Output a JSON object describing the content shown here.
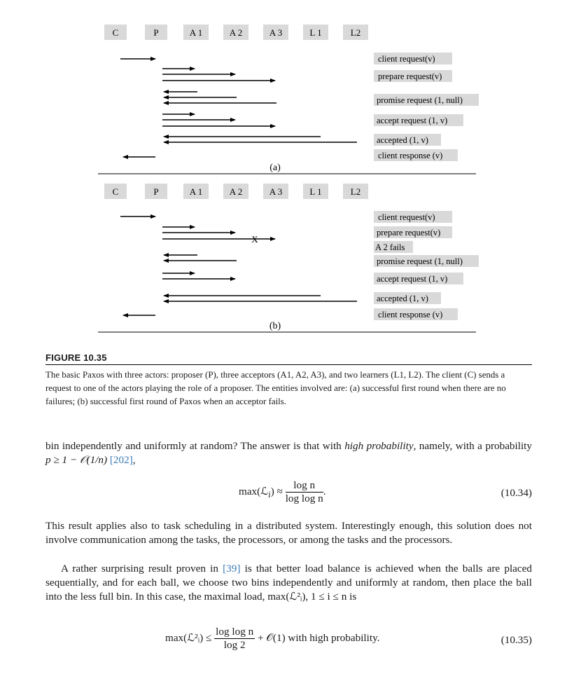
{
  "figure": {
    "actors": [
      "C",
      "P",
      "A 1",
      "A 2",
      "A 3",
      "L 1",
      "L2"
    ],
    "panel_a": {
      "label": "(a)",
      "messages": [
        "client request(v)",
        "prepare request(v)",
        "promise request (1, null)",
        "accept request (1, v)",
        "accepted (1, v)",
        "client response (v)"
      ]
    },
    "panel_b": {
      "label": "(b)",
      "messages": [
        "client request(v)",
        "prepare request(v)",
        "A 2 fails",
        "promise request (1, null)",
        "accept request (1, v)",
        "accepted (1, v)",
        "client response (v)"
      ],
      "failure_mark": "X"
    },
    "title": "FIGURE 10.35",
    "caption": "The basic Paxos with three actors: proposer (P), three acceptors (A1, A2, A3), and two learners (L1, L2). The client (C) sends a request to one of the actors playing the role of a proposer. The entities involved are: (a) successful first round when there are no failures; (b) successful first round of Paxos when an acceptor fails."
  },
  "text": {
    "p1_a": "bin independently and uniformly at random? The answer is that with ",
    "p1_em": "high probability",
    "p1_b": ", namely, with a probability ",
    "p1_math": "p ≥ 1 − 𝒪(1/n)",
    "p1_cite": "[202]",
    "p1_c": ",",
    "eq1_lhs": "max(ℒ",
    "eq1_sub": "i",
    "eq1_rhs": ") ≈",
    "eq1_num": "log n",
    "eq1_den": "log log n",
    "eq1_tail": ".",
    "eq1_number": "(10.34)",
    "p2": "This result applies also to task scheduling in a distributed system. Interestingly enough, this solution does not involve communication among the tasks, the processors, or among the tasks and the processors.",
    "p3_a": "A rather surprising result proven in ",
    "p3_cite": "[39]",
    "p3_b": " is that better load balance is achieved when the balls are placed sequentially, and for each ball, we choose two bins independently and uniformly at random, then place the ball into the less full bin. In this case, the maximal load, ",
    "p3_math": "max(ℒ²ᵢ),  1 ≤ i ≤ n",
    "p3_c": " is",
    "eq2_lhs": "max(ℒ²ᵢ) ≤",
    "eq2_num": "log log n",
    "eq2_den": "log 2",
    "eq2_tail": "+ 𝒪(1)  with high probability.",
    "eq2_number": "(10.35)"
  }
}
